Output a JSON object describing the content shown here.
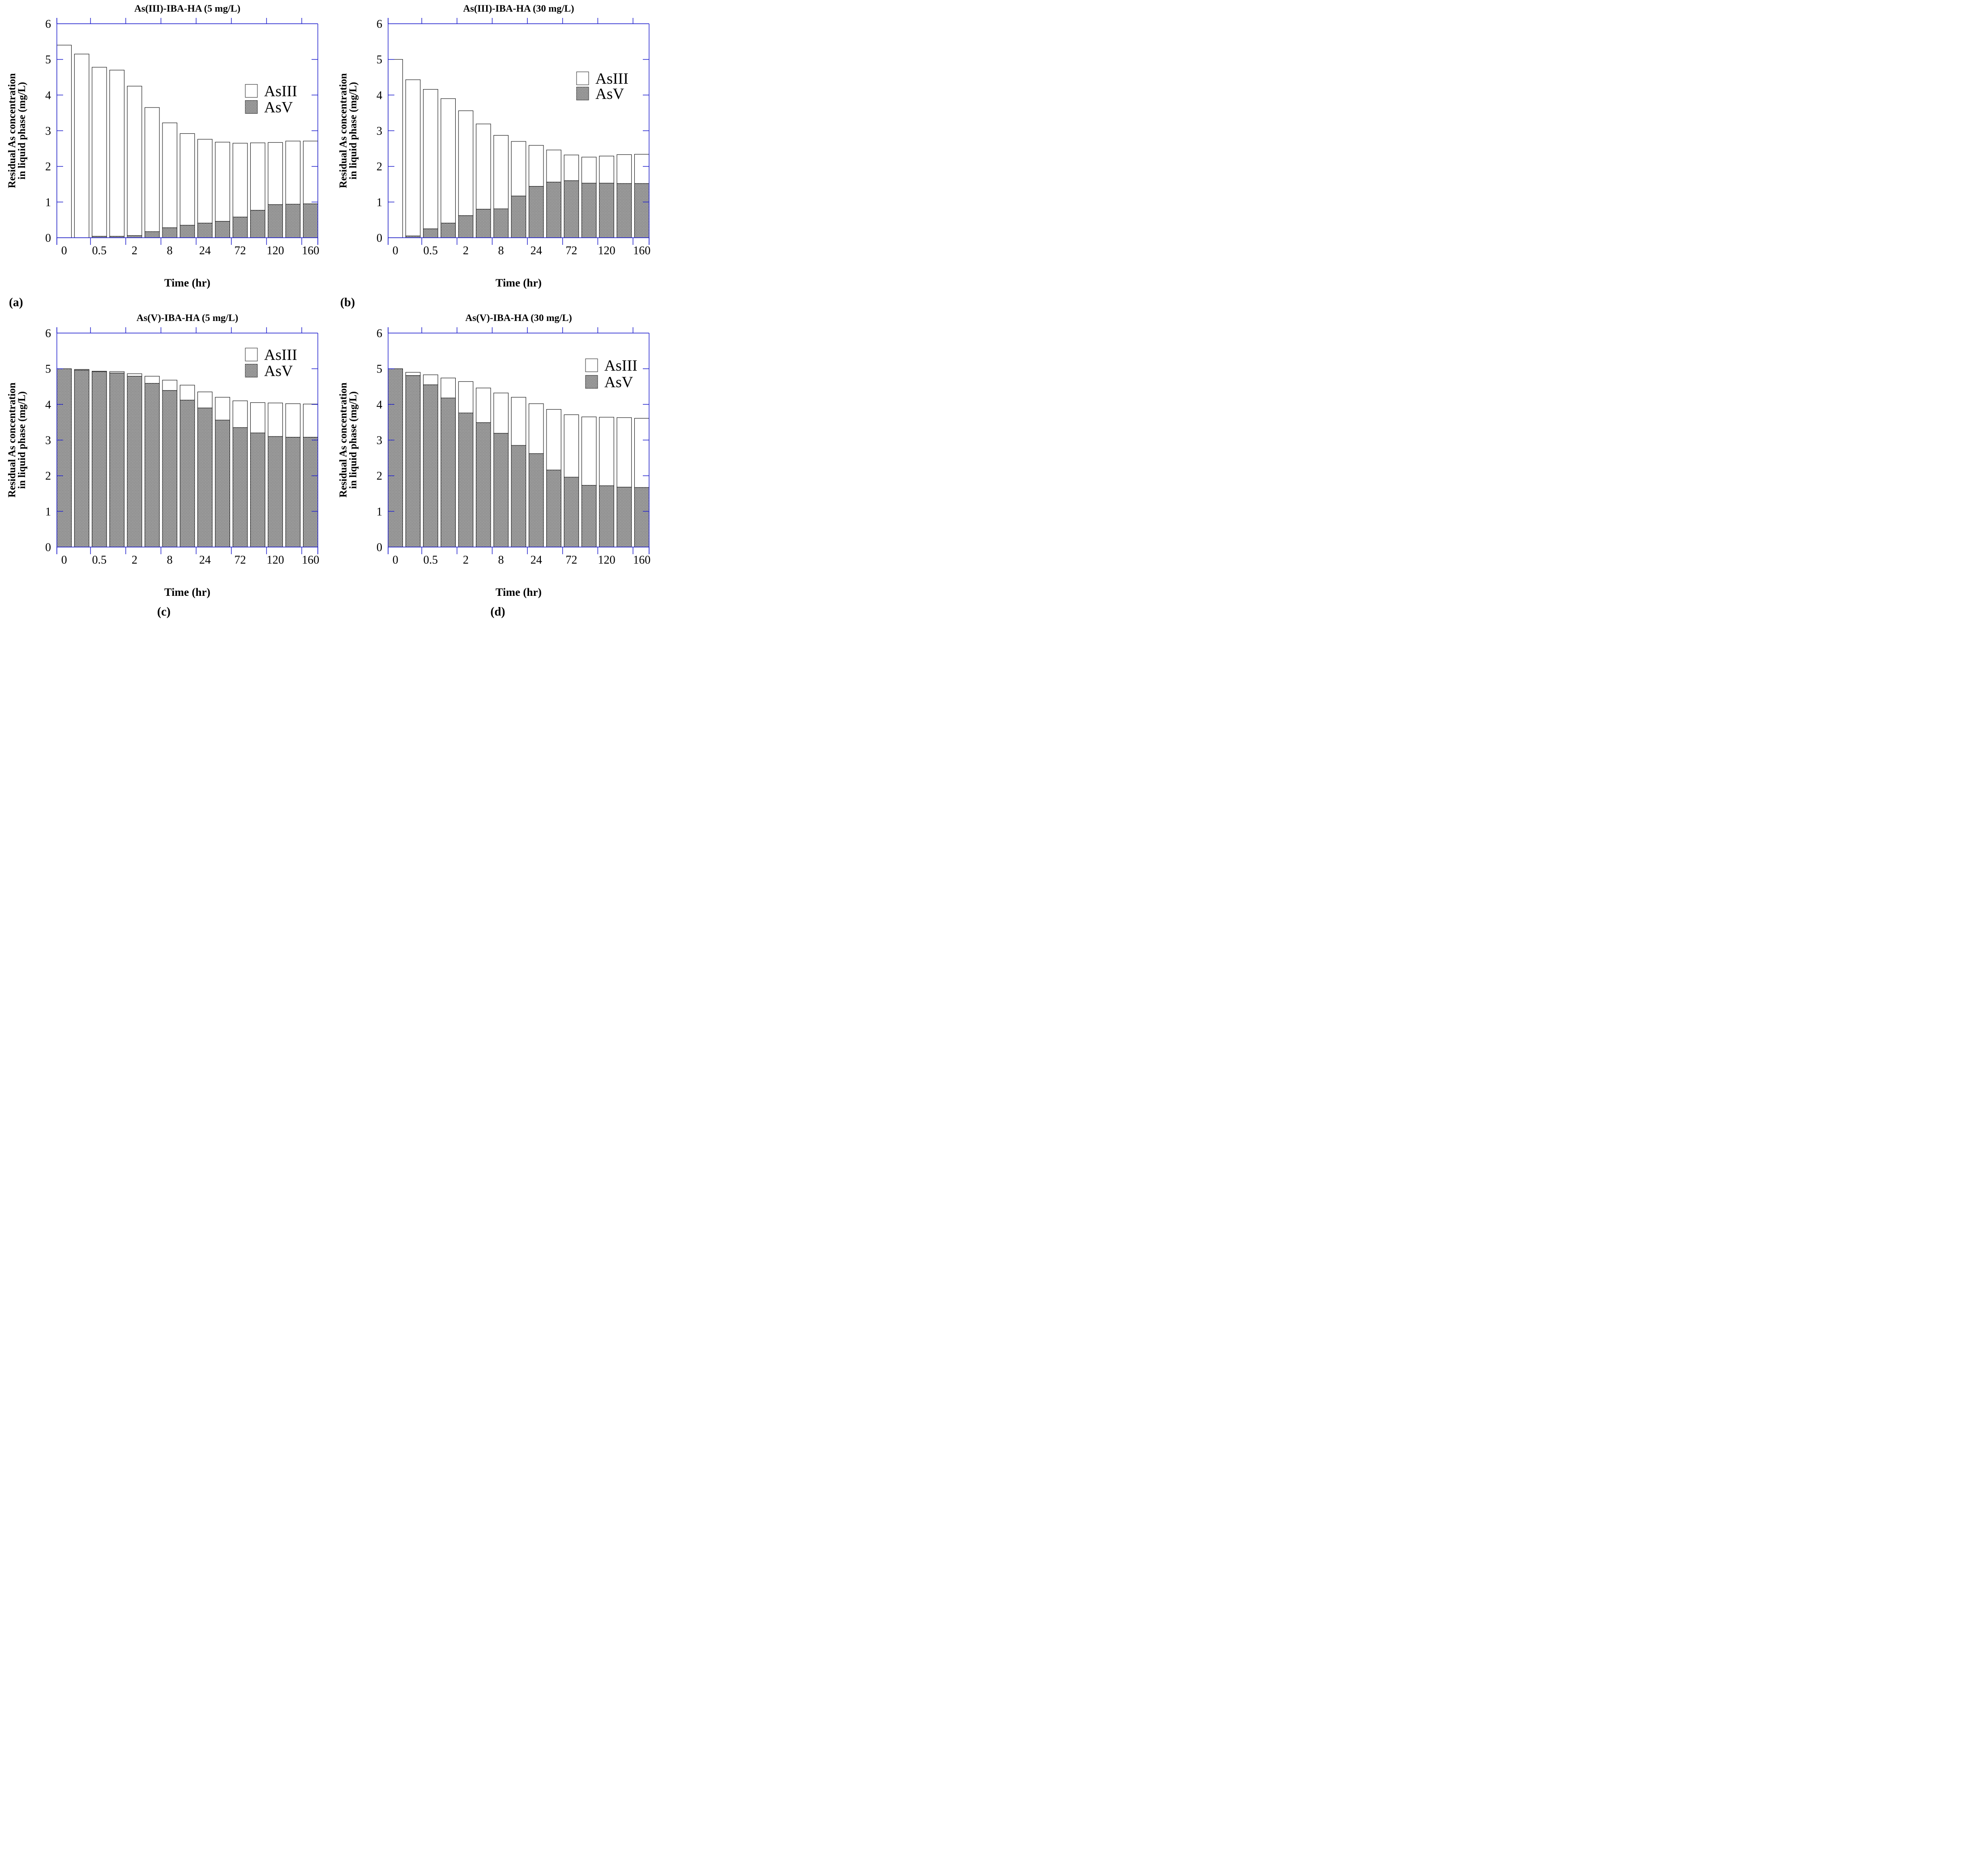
{
  "figure": {
    "background": "#ffffff",
    "colors": {
      "axis": "#2121cd",
      "bar_outline": "#1c1c1c",
      "hatch": "#303030",
      "legend_box_outline": "#4a4a4a",
      "text": "#000000"
    },
    "y_axis_label_line1": "Residual As concentration",
    "y_axis_label_line2": "in liquid phase (mg/L)",
    "x_axis_label": "Time (hr)",
    "legend_labels": [
      "AsIII",
      "AsV"
    ]
  },
  "chart_data": [
    {
      "type": "bar",
      "stacked": true,
      "panel_letter": "(a)",
      "title": "As(III)-IBA-HA (5 mg/L)",
      "xlabel": "Time (hr)",
      "ylabel": "Residual As concentration in liquid phase (mg/L)",
      "ylim": [
        0,
        6
      ],
      "yticks": [
        "0",
        "1",
        "2",
        "3",
        "4",
        "5",
        "6"
      ],
      "x_tick_labels": [
        "0",
        "0.5",
        "2",
        "8",
        "24",
        "72",
        "120",
        "160"
      ],
      "n_bars": 15,
      "x_label_every": 2,
      "series": [
        {
          "name": "AsV",
          "fill": "crosshatch",
          "values": [
            0,
            0,
            0.04,
            0.04,
            0.06,
            0.17,
            0.28,
            0.35,
            0.41,
            0.46,
            0.58,
            0.77,
            0.93,
            0.94,
            0.95
          ]
        },
        {
          "name": "AsIII",
          "fill": "white",
          "values": [
            5.4,
            5.15,
            4.74,
            4.66,
            4.19,
            3.48,
            2.94,
            2.57,
            2.35,
            2.22,
            2.07,
            1.89,
            1.74,
            1.77,
            1.76
          ]
        }
      ],
      "totals": [
        5.4,
        5.15,
        4.78,
        4.7,
        4.25,
        3.65,
        3.22,
        2.92,
        2.76,
        2.68,
        2.65,
        2.66,
        2.67,
        2.71,
        2.71
      ],
      "legend": {
        "entries": [
          "AsIII",
          "AsV"
        ],
        "position": "upper-right",
        "x": 548,
        "y_centers": [
          203,
          239
        ]
      },
      "letter_align": "left",
      "letter_x": 20
    },
    {
      "type": "bar",
      "stacked": true,
      "panel_letter": "(b)",
      "title": "As(III)-IBA-HA (30 mg/L)",
      "xlabel": "Time (hr)",
      "ylabel": "Residual As concentration in liquid phase (mg/L)",
      "ylim": [
        0,
        6
      ],
      "yticks": [
        "0",
        "1",
        "2",
        "3",
        "4",
        "5",
        "6"
      ],
      "x_tick_labels": [
        "0",
        "0.5",
        "2",
        "8",
        "24",
        "72",
        "120",
        "160"
      ],
      "n_bars": 15,
      "x_label_every": 2,
      "series": [
        {
          "name": "AsV",
          "fill": "crosshatch",
          "values": [
            0,
            0.05,
            0.25,
            0.41,
            0.62,
            0.8,
            0.81,
            1.17,
            1.44,
            1.56,
            1.6,
            1.53,
            1.53,
            1.52,
            1.52
          ]
        },
        {
          "name": "AsIII",
          "fill": "white",
          "values": [
            5.0,
            4.38,
            3.91,
            3.49,
            2.94,
            2.39,
            2.06,
            1.53,
            1.15,
            0.9,
            0.72,
            0.73,
            0.76,
            0.81,
            0.82
          ]
        }
      ],
      "totals": [
        5.0,
        4.43,
        4.16,
        3.9,
        3.56,
        3.19,
        2.87,
        2.7,
        2.59,
        2.46,
        2.32,
        2.26,
        2.29,
        2.33,
        2.34
      ],
      "legend": {
        "entries": [
          "AsIII",
          "AsV"
        ],
        "position": "upper-right",
        "x": 548,
        "y_centers": [
          175,
          209
        ]
      },
      "letter_align": "left",
      "letter_x": 20
    },
    {
      "type": "bar",
      "stacked": true,
      "panel_letter": "(c)",
      "title": "As(V)-IBA-HA (5 mg/L)",
      "xlabel": "Time (hr)",
      "ylabel": "Residual As concentration in liquid phase (mg/L)",
      "ylim": [
        0,
        6
      ],
      "yticks": [
        "0",
        "1",
        "2",
        "3",
        "4",
        "5",
        "6"
      ],
      "x_tick_labels": [
        "0",
        "0.5",
        "2",
        "8",
        "24",
        "72",
        "120",
        "160"
      ],
      "n_bars": 15,
      "x_label_every": 2,
      "series": [
        {
          "name": "AsV",
          "fill": "crosshatch",
          "values": [
            5.0,
            4.96,
            4.92,
            4.88,
            4.79,
            4.59,
            4.39,
            4.12,
            3.9,
            3.56,
            3.35,
            3.2,
            3.1,
            3.08,
            3.08
          ]
        },
        {
          "name": "AsIII",
          "fill": "white",
          "values": [
            0,
            0.02,
            0.01,
            0.04,
            0.07,
            0.2,
            0.29,
            0.42,
            0.45,
            0.64,
            0.75,
            0.85,
            0.94,
            0.94,
            0.93
          ]
        }
      ],
      "totals": [
        5.0,
        4.98,
        4.93,
        4.92,
        4.86,
        4.79,
        4.68,
        4.54,
        4.35,
        4.2,
        4.1,
        4.05,
        4.04,
        4.02,
        4.01
      ],
      "legend": {
        "entries": [
          "AsIII",
          "AsV"
        ],
        "position": "upper-right",
        "x": 548,
        "y_centers": [
          101,
          137
        ]
      },
      "letter_align": "middle",
      "letter_x": 366
    },
    {
      "type": "bar",
      "stacked": true,
      "panel_letter": "(d)",
      "title": "As(V)-IBA-HA (30 mg/L)",
      "xlabel": "Time (hr)",
      "ylabel": "Residual As concentration in liquid phase (mg/L)",
      "ylim": [
        0,
        6
      ],
      "yticks": [
        "0",
        "1",
        "2",
        "3",
        "4",
        "5",
        "6"
      ],
      "x_tick_labels": [
        "0",
        "0.5",
        "2",
        "8",
        "24",
        "72",
        "120",
        "160"
      ],
      "n_bars": 15,
      "x_label_every": 2,
      "series": [
        {
          "name": "AsV",
          "fill": "crosshatch",
          "values": [
            5.0,
            4.81,
            4.55,
            4.18,
            3.76,
            3.49,
            3.19,
            2.85,
            2.62,
            2.16,
            1.96,
            1.73,
            1.72,
            1.68,
            1.67
          ]
        },
        {
          "name": "AsIII",
          "fill": "white",
          "values": [
            0,
            0.09,
            0.28,
            0.56,
            0.88,
            0.97,
            1.13,
            1.35,
            1.4,
            1.7,
            1.75,
            1.92,
            1.92,
            1.95,
            1.94
          ]
        }
      ],
      "totals": [
        5.0,
        4.9,
        4.83,
        4.74,
        4.64,
        4.46,
        4.32,
        4.2,
        4.02,
        3.86,
        3.71,
        3.65,
        3.64,
        3.63,
        3.61
      ],
      "legend": {
        "entries": [
          "AsIII",
          "AsV"
        ],
        "position": "upper-right",
        "x": 568,
        "y_centers": [
          125,
          162
        ]
      },
      "letter_align": "middle",
      "letter_x": 372
    }
  ]
}
